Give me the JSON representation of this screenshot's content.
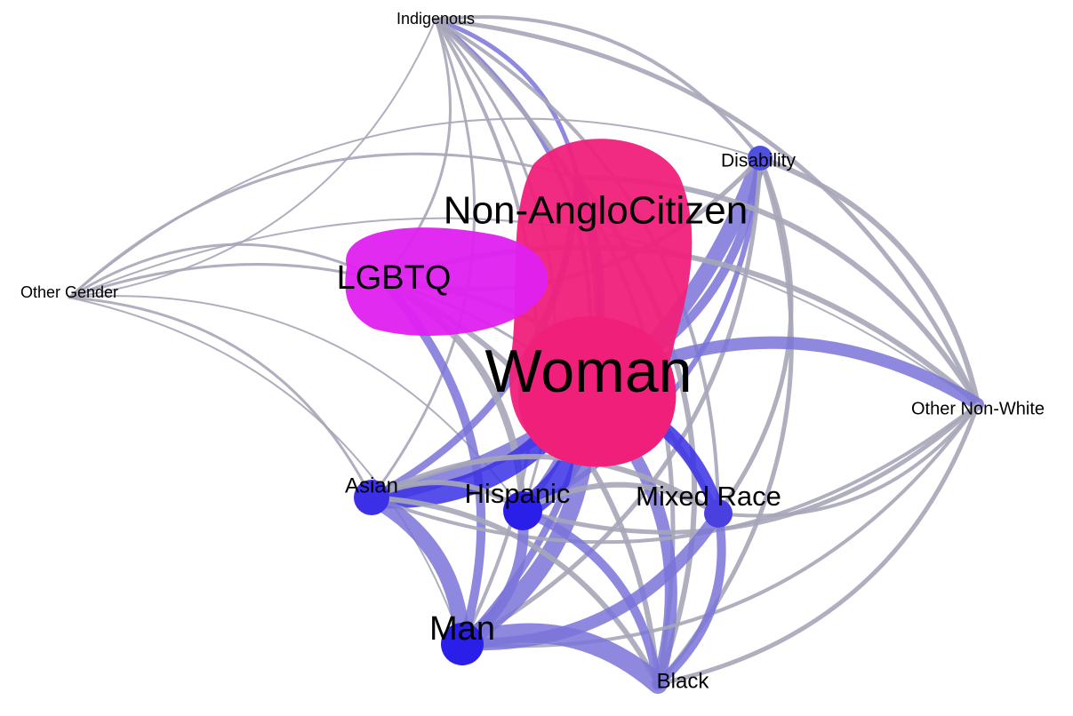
{
  "nodes": [
    {
      "label": "Indigenous"
    },
    {
      "label": "Disability"
    },
    {
      "label": "Non-AngloCitizen"
    },
    {
      "label": "LGBTQ"
    },
    {
      "label": "Other Gender"
    },
    {
      "label": "Woman"
    },
    {
      "label": "Other Non-White"
    },
    {
      "label": "Asian"
    },
    {
      "label": "Hispanic"
    },
    {
      "label": "Mixed Race"
    },
    {
      "label": "Man"
    },
    {
      "label": "Black"
    }
  ]
}
